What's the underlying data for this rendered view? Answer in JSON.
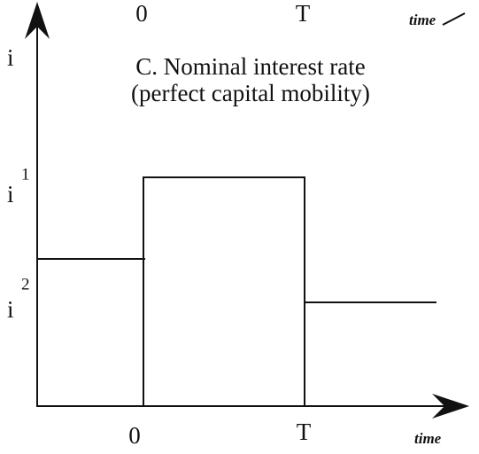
{
  "top_axis": {
    "zero": "0",
    "t": "T",
    "time": "time"
  },
  "y_axis": {
    "label": "i"
  },
  "title": {
    "line1": "C. Nominal interest rate",
    "line2": "(perfect capital mobility)"
  },
  "levels": [
    {
      "symbol": "i",
      "superscript": "1"
    },
    {
      "symbol": "i",
      "superscript": "2"
    }
  ],
  "x_axis": {
    "zero": "0",
    "t": "T",
    "time": "time"
  }
}
